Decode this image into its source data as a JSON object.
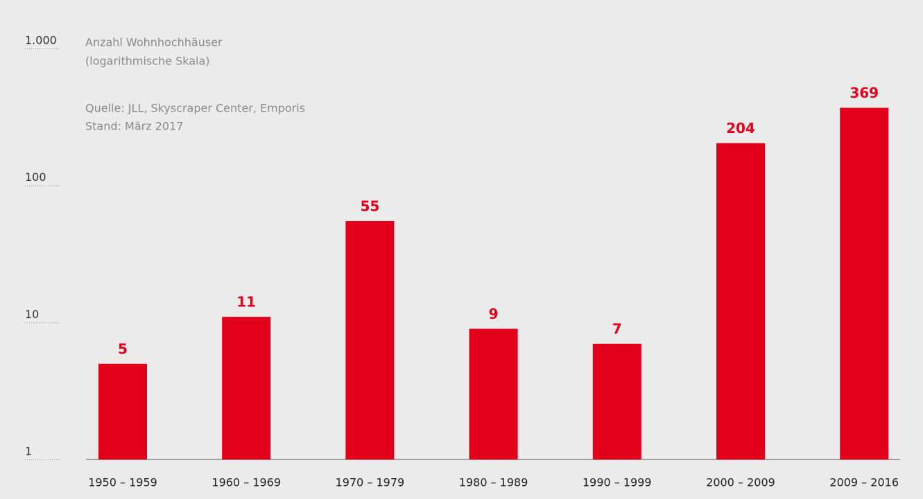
{
  "chart_data": {
    "type": "bar",
    "ylabel": [
      "Anzahl Wohnhochhäuser",
      "(logarithmische Skala)"
    ],
    "source": [
      "Quelle: JLL, Skyscraper Center, Emporis",
      "Stand: März 2017"
    ],
    "categories": [
      "1950 – 1959",
      "1960 – 1969",
      "1970 – 1979",
      "1980 – 1989",
      "1990 – 1999",
      "2000 – 2009",
      "2009 – 2016"
    ],
    "values": [
      5,
      11,
      55,
      9,
      7,
      204,
      369
    ],
    "color": "#e2001a",
    "log_scale": true,
    "ylim": [
      1,
      1000
    ],
    "yticks": [
      1,
      10,
      100,
      {
        "value": 1000,
        "label": "1.000"
      }
    ],
    "grid": false
  }
}
